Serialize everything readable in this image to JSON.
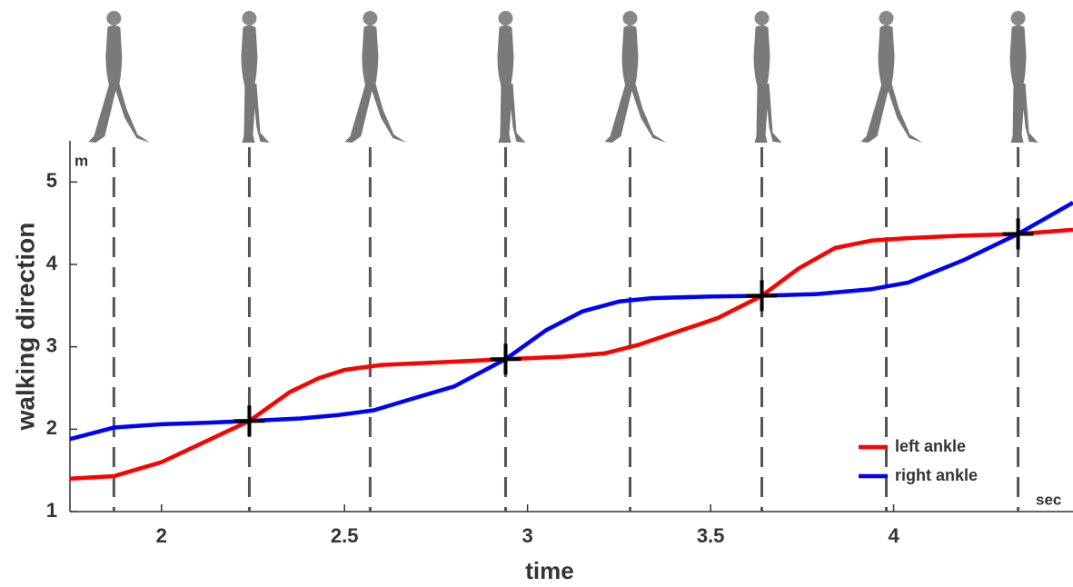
{
  "chart_data": {
    "type": "line",
    "xlabel": "time",
    "ylabel": "walking direction",
    "x_unit": "sec",
    "y_unit": "m",
    "xlim": [
      1.75,
      4.49
    ],
    "ylim": [
      1,
      5.5
    ],
    "xticks": [
      2,
      2.5,
      3,
      3.5,
      4
    ],
    "yticks": [
      1,
      2,
      3,
      4,
      5
    ],
    "legend": "lower right",
    "event_times": [
      1.87,
      2.24,
      2.57,
      2.94,
      3.28,
      3.64,
      3.98,
      4.34
    ],
    "crossings": [
      {
        "x": 2.24,
        "y": 2.1
      },
      {
        "x": 2.94,
        "y": 2.85
      },
      {
        "x": 3.64,
        "y": 3.62
      },
      {
        "x": 4.34,
        "y": 4.37
      }
    ],
    "series": [
      {
        "name": "left ankle",
        "color": "#ff0000",
        "x": [
          1.75,
          1.87,
          2.0,
          2.12,
          2.24,
          2.35,
          2.43,
          2.5,
          2.6,
          2.75,
          2.94,
          3.1,
          3.21,
          3.3,
          3.42,
          3.52,
          3.64,
          3.74,
          3.84,
          3.94,
          4.04,
          4.19,
          4.34,
          4.49
        ],
        "values": [
          1.4,
          1.43,
          1.6,
          1.85,
          2.1,
          2.45,
          2.62,
          2.72,
          2.78,
          2.81,
          2.85,
          2.88,
          2.92,
          3.02,
          3.2,
          3.35,
          3.62,
          3.95,
          4.2,
          4.29,
          4.32,
          4.35,
          4.37,
          4.42
        ]
      },
      {
        "name": "right ankle",
        "color": "#0000ff",
        "x": [
          1.75,
          1.87,
          2.0,
          2.13,
          2.24,
          2.38,
          2.48,
          2.58,
          2.67,
          2.8,
          2.94,
          3.05,
          3.15,
          3.25,
          3.34,
          3.49,
          3.64,
          3.79,
          3.94,
          4.04,
          4.19,
          4.34,
          4.49
        ],
        "values": [
          1.88,
          2.02,
          2.06,
          2.08,
          2.1,
          2.13,
          2.17,
          2.23,
          2.35,
          2.52,
          2.85,
          3.2,
          3.43,
          3.55,
          3.59,
          3.61,
          3.62,
          3.64,
          3.7,
          3.78,
          4.05,
          4.37,
          4.75
        ]
      }
    ]
  }
}
